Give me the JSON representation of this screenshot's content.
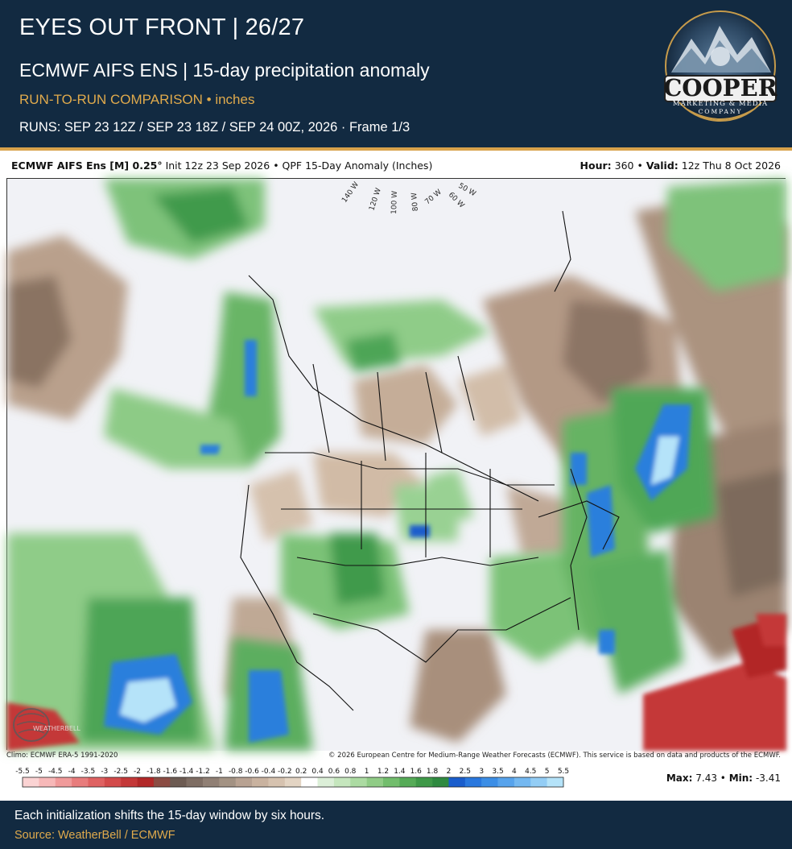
{
  "header": {
    "title": "EYES OUT FRONT | 26/27",
    "subtitle": "ECMWF AIFS ENS | 15-day precipitation anomaly",
    "comparison": "RUN-TO-RUN COMPARISON • inches",
    "runs": "RUNS: SEP 23 12Z / SEP 23 18Z / SEP 24 00Z, 2026 · Frame 1/3"
  },
  "logo": {
    "name": "COOPER",
    "tagline": "MARKETING & MEDIA",
    "company": "COMPANY"
  },
  "map_header": {
    "model": "ECMWF AIFS Ens [M] 0.25°",
    "init": "Init 12z 23 Sep 2026",
    "product": "QPF 15-Day Anomaly (Inches)",
    "hour_label": "Hour:",
    "hour": "360",
    "valid_label": "Valid:",
    "valid": "12z Thu 8 Oct 2026"
  },
  "longitude_labels": [
    "140 W",
    "120 W",
    "100 W",
    "80 W",
    "70 W",
    "60 W",
    "50 W"
  ],
  "watermark": "WEATHERBELL",
  "climo": "Climo: ECMWF ERA-5 1991-2020",
  "copyright": "© 2026 European Centre for Medium-Range Weather Forecasts (ECMWF). This service is based on data and products of the ECMWF.",
  "scale": {
    "labels": [
      "-5.5",
      "-5",
      "-4.5",
      "-4",
      "-3.5",
      "-3",
      "-2.5",
      "-2",
      "-1.8",
      "-1.6",
      "-1.4",
      "-1.2",
      "-1",
      "-0.8",
      "-0.6",
      "-0.4",
      "-0.2",
      "0.2",
      "0.4",
      "0.6",
      "0.8",
      "1",
      "1.2",
      "1.4",
      "1.6",
      "1.8",
      "2",
      "2.5",
      "3",
      "3.5",
      "4",
      "4.5",
      "5",
      "5.5"
    ],
    "colors": [
      "#fbd3d3",
      "#f7b8b8",
      "#f09a9a",
      "#e87c7c",
      "#df6262",
      "#d34a4a",
      "#c43838",
      "#b22828",
      "#8b4c43",
      "#6d5b52",
      "#7e6d63",
      "#907f74",
      "#a39283",
      "#b8a292",
      "#c9b29f",
      "#d6c2af",
      "#e3d4c3",
      "#ffffff",
      "#dcefd8",
      "#c5e6bd",
      "#acdba2",
      "#90cc86",
      "#72bd6c",
      "#56ab57",
      "#3f9948",
      "#2f8a40",
      "#1a5dcc",
      "#2a78de",
      "#3c8ee6",
      "#57a3ec",
      "#74b8f1",
      "#93cdf5",
      "#b5e3f9"
    ]
  },
  "stats": {
    "max_label": "Max:",
    "max": "7.43",
    "min_label": "Min:",
    "min": "-3.41"
  },
  "footer": {
    "caption": "Each initialization shifts the 15-day window by six hours.",
    "source": "Source: WeatherBell / ECMWF"
  }
}
